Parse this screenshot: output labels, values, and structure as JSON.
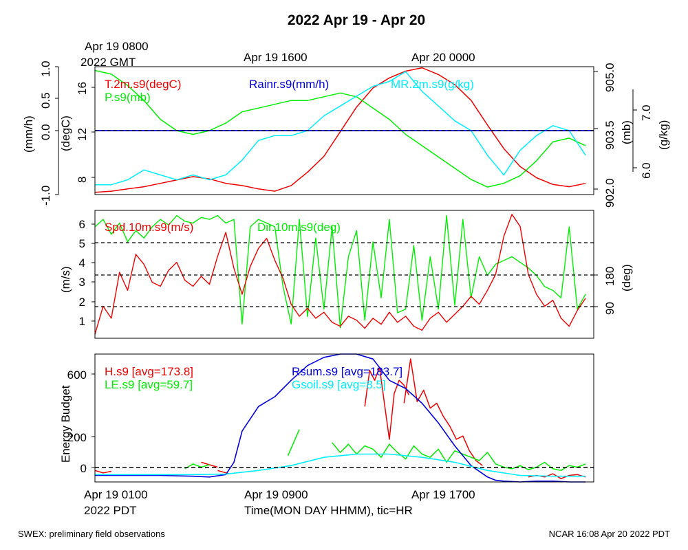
{
  "figure": {
    "title": "2022 Apr 19 - Apr 20",
    "top_time_labels": {
      "first_line1": "Apr 19 0800",
      "first_line2": "2022 GMT",
      "second": "Apr 19 1600",
      "third": "Apr 20 0000"
    },
    "bottom_time_labels": {
      "first": "Apr 19 0100",
      "first_line2": "2022 PDT",
      "second": "Apr 19 0900",
      "third": "Apr 19 1700"
    },
    "xlabel": "Time(MON DAY HHMM), tic=HR",
    "footer_left": "SWEX: preliminary field observations",
    "footer_right": "NCAR 16:08 Apr 20 2022 PDT"
  },
  "colors": {
    "red": "#ee0000",
    "green": "#00ee00",
    "blue": "#0000dd",
    "cyan": "#00eeff",
    "black": "#000000"
  },
  "chart_data": [
    {
      "type": "line",
      "panel": "thermo",
      "x_unit": "hours since Apr 19 0100 PDT",
      "xlim": [
        0,
        30.5
      ],
      "axes": {
        "rain": {
          "label": "(mm/h)",
          "ylim": [
            -1.0,
            1.0
          ],
          "ticks": [
            "-1.0",
            "0.0",
            "0.5",
            "1.0"
          ]
        },
        "temp": {
          "label": "(degC)",
          "ylim": [
            6.8,
            18.2
          ],
          "ticks": [
            "8",
            "12",
            "16"
          ]
        },
        "pres": {
          "label": "(mb)",
          "ylim": [
            902.0,
            905.4
          ],
          "ticks": [
            "902.0",
            "903.5",
            "905.0"
          ]
        },
        "mr": {
          "label": "(g/kg)",
          "ylim": [
            5.4,
            8.0
          ],
          "ticks": [
            "6.0",
            "7.0"
          ]
        }
      },
      "legend": {
        "temp": "T.2m.s9(degC)",
        "pres": "P.s9(mb)",
        "rain": "Rainr.s9(mm/h)",
        "mr": "MR.2m.s9(g/kg)"
      },
      "series": [
        {
          "name": "T.2m.s9(degC)",
          "axis": "temp",
          "x": [
            0,
            1,
            2,
            3,
            4,
            5,
            6,
            7,
            8,
            9,
            10,
            11,
            12,
            13,
            14,
            15,
            16,
            17,
            18,
            19,
            20,
            21,
            22,
            23,
            24,
            25,
            26,
            27,
            28,
            29,
            30
          ],
          "y": [
            7.0,
            7.1,
            7.3,
            7.5,
            7.8,
            8.1,
            8.4,
            8.2,
            7.8,
            7.6,
            7.3,
            7.1,
            7.6,
            8.8,
            10.2,
            12.4,
            14.6,
            16.3,
            17.2,
            17.8,
            18.1,
            17.5,
            16.6,
            15.2,
            13.0,
            10.9,
            9.3,
            8.3,
            7.7,
            7.5,
            7.8
          ]
        },
        {
          "name": "P.s9(mb)",
          "axis": "pres",
          "x": [
            0,
            1,
            2,
            3,
            4,
            5,
            6,
            7,
            8,
            9,
            10,
            11,
            12,
            13,
            14,
            15,
            16,
            17,
            18,
            19,
            20,
            21,
            22,
            23,
            24,
            25,
            26,
            27,
            28,
            29,
            30
          ],
          "y": [
            905.3,
            905.2,
            904.9,
            904.5,
            904.0,
            903.7,
            903.6,
            903.7,
            903.9,
            904.2,
            904.3,
            904.4,
            904.5,
            904.5,
            904.6,
            904.7,
            904.6,
            904.3,
            904.0,
            903.6,
            903.3,
            903.0,
            902.7,
            902.4,
            902.2,
            902.3,
            902.5,
            902.9,
            903.4,
            903.5,
            903.3
          ]
        },
        {
          "name": "Rainr.s9(mm/h)",
          "axis": "rain",
          "x": [
            0,
            30.5
          ],
          "y": [
            0.0,
            0.0
          ]
        },
        {
          "name": "MR.2m.s9(g/kg)",
          "axis": "mr",
          "x": [
            0,
            1,
            2,
            3,
            4,
            5,
            6,
            7,
            8,
            9,
            10,
            11,
            12,
            13,
            14,
            15,
            16,
            17,
            18,
            19,
            20,
            21,
            22,
            23,
            24,
            25,
            26,
            27,
            28,
            29,
            30
          ],
          "y": [
            5.6,
            5.6,
            5.7,
            5.9,
            5.8,
            5.7,
            5.8,
            5.7,
            5.8,
            6.1,
            6.5,
            6.6,
            6.6,
            6.7,
            7.0,
            7.2,
            7.4,
            7.6,
            7.7,
            7.9,
            7.5,
            7.2,
            6.9,
            6.7,
            6.2,
            5.8,
            6.3,
            6.6,
            6.8,
            6.7,
            6.2
          ]
        }
      ]
    },
    {
      "type": "line",
      "panel": "wind",
      "x_unit": "hours since Apr 19 0100 PDT",
      "xlim": [
        0,
        30.5
      ],
      "axes": {
        "spd": {
          "label": "(m/s)",
          "ylim": [
            0.2,
            6.6
          ],
          "ticks": [
            "1",
            "2",
            "3",
            "4",
            "5",
            "6"
          ]
        },
        "dir": {
          "label": "(deg)",
          "ylim": [
            -18,
            324
          ],
          "ticks": [
            "90",
            "180"
          ]
        }
      },
      "reference_lines_spd": [
        5.05,
        3.4,
        1.8
      ],
      "legend": {
        "spd": "Spd.10m.s9(m/s)",
        "dir": "Dir.10m.s9(deg)"
      },
      "series": [
        {
          "name": "Spd.10m.s9(m/s)",
          "axis": "spd",
          "x": [
            0,
            0.5,
            1,
            1.5,
            2,
            2.5,
            3,
            3.5,
            4,
            4.5,
            5,
            5.5,
            6,
            6.5,
            7,
            7.5,
            8,
            8.5,
            9,
            9.5,
            10,
            10.5,
            11,
            11.5,
            12,
            12.5,
            13,
            13.5,
            14,
            14.5,
            15,
            15.5,
            16,
            16.5,
            17,
            17.5,
            18,
            18.5,
            19,
            19.5,
            20,
            20.5,
            21,
            21.5,
            22,
            22.5,
            23,
            23.5,
            24,
            24.5,
            25,
            25.5,
            26,
            26.5,
            27,
            27.5,
            28,
            28.5,
            29,
            29.5,
            30
          ],
          "y": [
            0.4,
            1.8,
            1.2,
            3.5,
            2.6,
            4.4,
            3.9,
            3.0,
            2.8,
            3.6,
            4.0,
            3.1,
            2.8,
            3.3,
            2.9,
            4.3,
            5.5,
            3.7,
            2.4,
            3.8,
            4.7,
            5.2,
            4.1,
            3.2,
            1.9,
            1.3,
            1.7,
            1.2,
            1.5,
            1.0,
            0.8,
            1.3,
            1.1,
            0.7,
            1.2,
            0.9,
            1.5,
            1.0,
            1.3,
            0.8,
            0.6,
            1.2,
            1.5,
            1.0,
            1.4,
            1.8,
            2.3,
            1.9,
            2.6,
            3.4,
            5.3,
            6.4,
            5.8,
            3.4,
            2.4,
            1.8,
            2.1,
            1.2,
            0.8,
            1.6,
            2.2
          ]
        },
        {
          "name": "Dir.10m.s9(deg)",
          "axis": "dir",
          "x": [
            0,
            0.5,
            1,
            1.5,
            2,
            2.5,
            3,
            3.5,
            4,
            4.5,
            5,
            5.5,
            6,
            6.5,
            7,
            7.5,
            8,
            8.5,
            9,
            9.5,
            10,
            10.5,
            11,
            11.5,
            12,
            12.5,
            13,
            13.5,
            14,
            14.5,
            15,
            15.5,
            16,
            16.5,
            17,
            17.5,
            18,
            18.5,
            19,
            19.5,
            20,
            20.5,
            21,
            21.5,
            22,
            22.5,
            23,
            23.5,
            24,
            24.5,
            25,
            25.5,
            26,
            26.5,
            27,
            27.5,
            28,
            28.5,
            29,
            29.5,
            30
          ],
          "y": [
            280,
            300,
            260,
            290,
            240,
            270,
            250,
            280,
            300,
            285,
            310,
            295,
            290,
            305,
            300,
            310,
            290,
            300,
            20,
            280,
            300,
            290,
            280,
            120,
            20,
            300,
            40,
            250,
            60,
            280,
            10,
            200,
            270,
            30,
            240,
            90,
            300,
            50,
            60,
            230,
            30,
            200,
            60,
            310,
            70,
            300,
            90,
            200,
            150,
            180,
            190,
            200,
            185,
            170,
            150,
            120,
            110,
            90,
            280,
            60,
            100
          ]
        }
      ]
    },
    {
      "type": "line",
      "panel": "energy",
      "x_unit": "hours since Apr 19 0100 PDT",
      "xlim": [
        0,
        30.5
      ],
      "ylabel": "Energy Budget",
      "ylim": [
        -60,
        720
      ],
      "yticks": [
        "0",
        "200",
        "600"
      ],
      "reference_line": 0,
      "legend": {
        "h": "H.s9 [avg=173.8]",
        "le": "LE.s9 [avg=59.7]",
        "rsum": "Rsum.s9 [avg=183.7]",
        "gsoil": "Gsoil.s9 [avg=8.5]"
      },
      "series": [
        {
          "name": "H.s9",
          "color": "red",
          "segments": [
            {
              "x": [
                0,
                0.5,
                1
              ],
              "y": [
                10,
                -5,
                5
              ]
            },
            {
              "x": [
                7.5,
                8.2
              ],
              "y": [
                10,
                -10
              ]
            },
            {
              "x": [
                6.5,
                7,
                7.5
              ],
              "y": [
                60,
                45,
                30
              ]
            },
            {
              "x": [
                16.5,
                16.8,
                17.1,
                17.4,
                17.7,
                18,
                18.3,
                18.6,
                18.9,
                19.2
              ],
              "y": [
                400,
                620,
                560,
                640,
                420,
                200,
                480,
                560,
                530,
                470
              ]
            },
            {
              "x": [
                18.9,
                19.3,
                19.7,
                20.1,
                20.5,
                20.9,
                21.3,
                21.7,
                22.1,
                22.5,
                22.9,
                23.3,
                23.7
              ],
              "y": [
                420,
                690,
                430,
                500,
                390,
                420,
                340,
                280,
                200,
                220,
                130,
                70,
                40
              ]
            },
            {
              "x": [
                26.5,
                27,
                27.5,
                28,
                28.5,
                29,
                29.5,
                30
              ],
              "y": [
                -30,
                -20,
                -30,
                -10,
                -40,
                -20,
                -15,
                -30
              ]
            }
          ]
        },
        {
          "name": "LE.s9",
          "color": "green",
          "segments": [
            {
              "x": [
                5.5,
                6,
                6.5,
                7
              ],
              "y": [
                20,
                50,
                30,
                45
              ]
            },
            {
              "x": [
                11.8,
                12.5
              ],
              "y": [
                100,
                260
              ]
            },
            {
              "x": [
                14.5,
                15,
                15.5,
                16,
                16.5,
                17,
                17.5,
                18,
                18.5,
                19,
                19.5,
                20,
                20.5,
                21,
                21.5,
                22,
                22.5,
                23,
                23.5,
                24,
                24.5,
                25,
                25.5,
                26,
                26.5,
                27,
                27.5,
                28,
                28.5,
                29,
                29.5,
                30
              ],
              "y": [
                180,
                120,
                170,
                110,
                160,
                140,
                90,
                170,
                120,
                80,
                160,
                110,
                90,
                140,
                60,
                130,
                110,
                90,
                70,
                120,
                50,
                30,
                20,
                40,
                15,
                30,
                60,
                20,
                10,
                40,
                30,
                50
              ]
            }
          ]
        },
        {
          "name": "Rsum.s9",
          "color": "blue",
          "x": [
            0,
            2,
            4,
            6,
            7,
            8,
            8.5,
            9,
            10,
            11,
            12,
            13,
            14,
            15,
            16,
            17,
            18,
            19,
            20,
            21,
            22,
            23,
            24,
            24.5,
            25,
            26,
            27,
            28,
            29,
            30
          ],
          "y": [
            -20,
            -20,
            -20,
            -25,
            -30,
            -15,
            60,
            250,
            400,
            460,
            560,
            650,
            700,
            720,
            720,
            690,
            560,
            510,
            420,
            300,
            160,
            40,
            -30,
            -50,
            -55,
            -60,
            -55,
            -55,
            -60,
            -60
          ]
        },
        {
          "name": "Gsoil.s9",
          "color": "cyan",
          "x": [
            0,
            2,
            4,
            6,
            8,
            10,
            12,
            14,
            16,
            18,
            20,
            22,
            24,
            26,
            28,
            30
          ],
          "y": [
            -15,
            -15,
            -15,
            -15,
            -12,
            10,
            40,
            90,
            110,
            110,
            90,
            60,
            10,
            -20,
            -25,
            -25
          ]
        }
      ]
    }
  ]
}
